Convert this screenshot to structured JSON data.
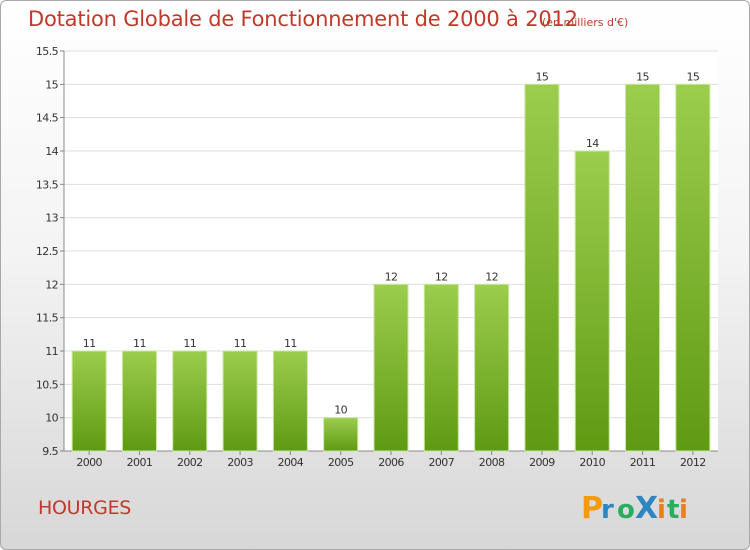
{
  "header": {
    "title": "Dotation Globale de Fonctionnement de 2000 à 2012",
    "unit": "(en milliers d'€)"
  },
  "footer": {
    "commune": "HOURGES",
    "brand": "Proxiti"
  },
  "colors": {
    "title": "#c0392b",
    "bar_light": "#9ccd4d",
    "bar_dark": "#5f9a13",
    "brand_p": "#f39c12",
    "brand_r": "#2e86c1",
    "brand_o": "#27ae60",
    "brand_x": "#2e86c1",
    "brand_i": "#e67e22",
    "brand_t": "#27ae60"
  },
  "chart_data": {
    "type": "bar",
    "categories": [
      "2000",
      "2001",
      "2002",
      "2003",
      "2004",
      "2005",
      "2006",
      "2007",
      "2008",
      "2009",
      "2010",
      "2011",
      "2012"
    ],
    "values": [
      11,
      11,
      11,
      11,
      11,
      10,
      12,
      12,
      12,
      15,
      14,
      15,
      15
    ],
    "data_labels": [
      "11",
      "11",
      "11",
      "11",
      "11",
      "10",
      "12",
      "12",
      "12",
      "15",
      "14",
      "15",
      "15"
    ],
    "y_ticks": [
      "9.5",
      "10",
      "10.5",
      "11",
      "11.5",
      "12",
      "12.5",
      "13",
      "13.5",
      "14",
      "14.5",
      "15",
      "15.5"
    ],
    "ylim": [
      9.5,
      15.5
    ],
    "grid": true,
    "title": "Dotation Globale de Fonctionnement de 2000 à 2012",
    "xlabel": "",
    "ylabel": ""
  }
}
